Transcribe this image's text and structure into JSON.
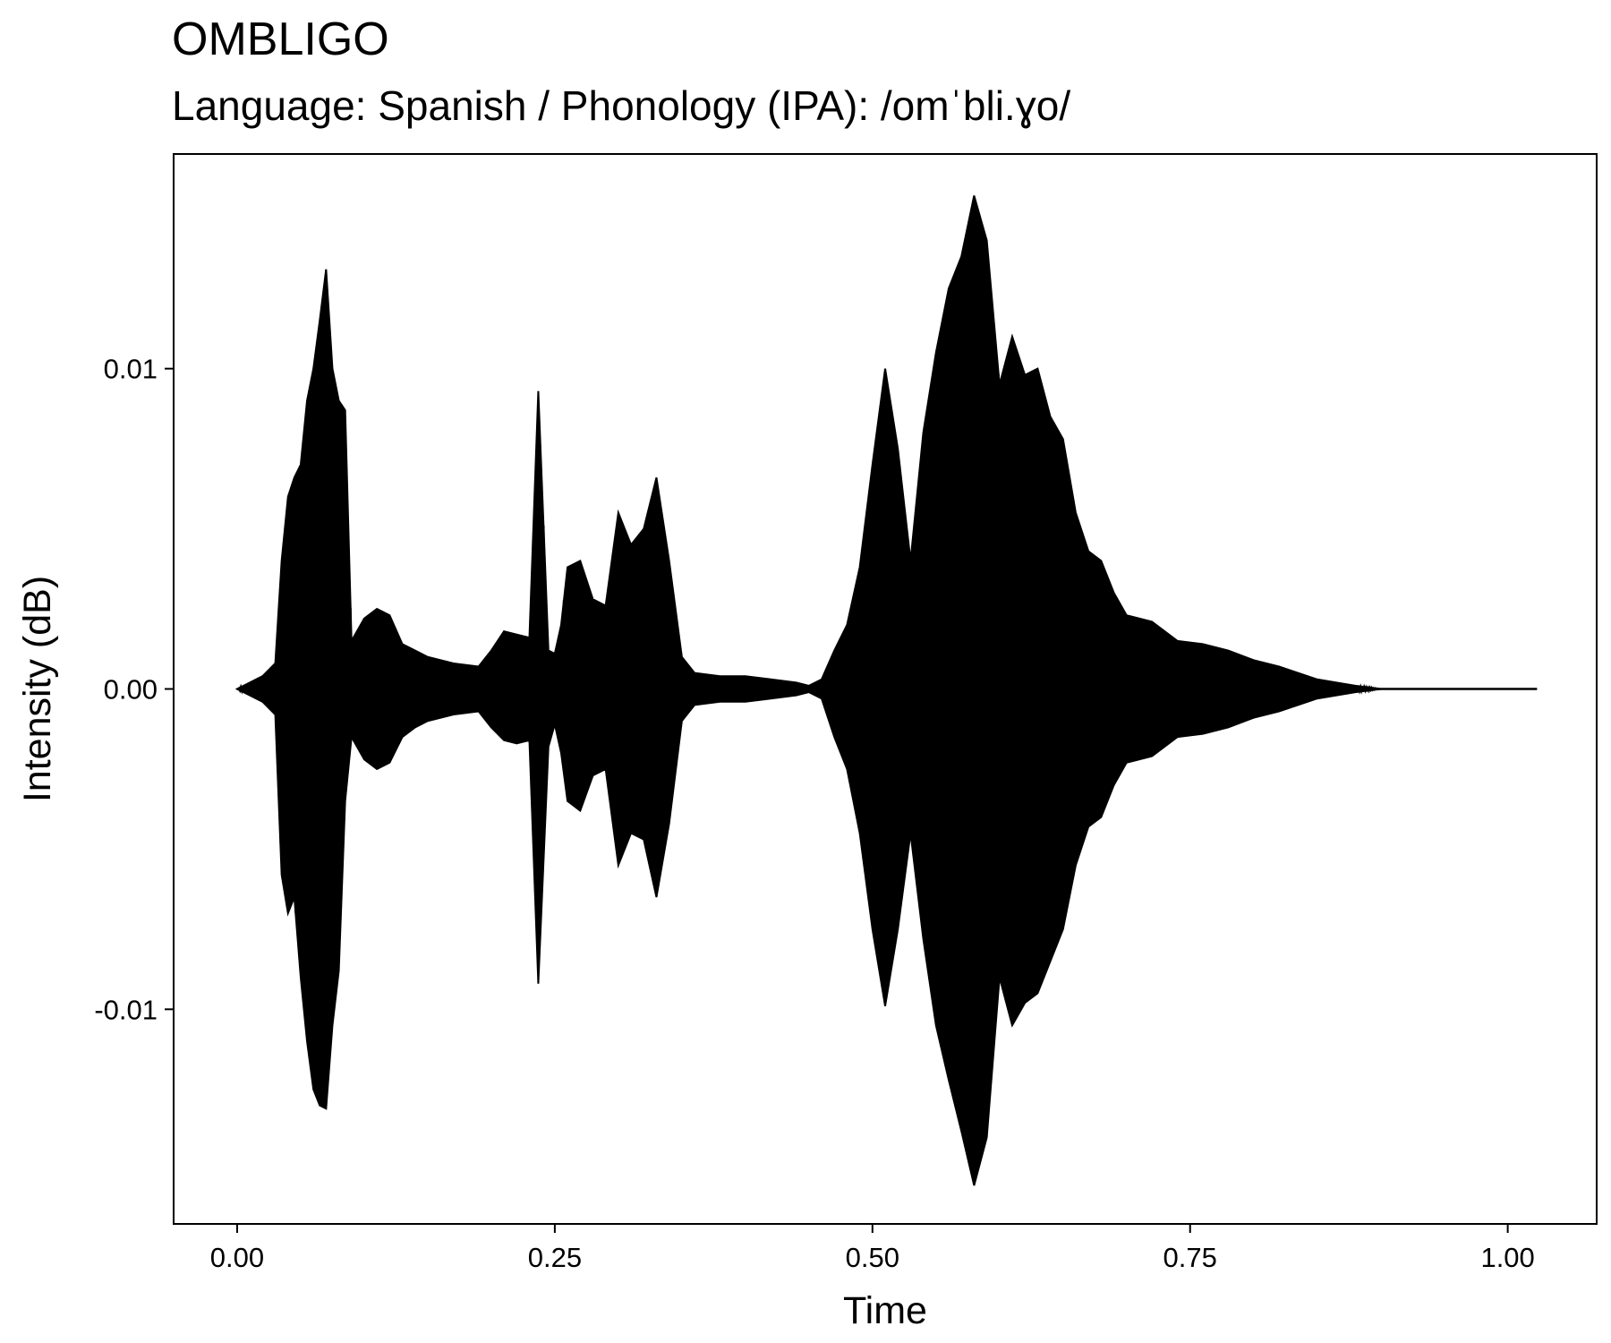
{
  "chart_data": {
    "type": "line",
    "title": "OMBLIGO",
    "subtitle": "Language: Spanish / Phonology (IPA): /omˈbli.ɣo/",
    "xlabel": "Time",
    "ylabel": "Intensity (dB)",
    "xlim": [
      -0.05,
      1.07
    ],
    "ylim": [
      -0.0167,
      0.0167
    ],
    "x_ticks": [
      0.0,
      0.25,
      0.5,
      0.75,
      1.0
    ],
    "x_tick_labels": [
      "0.00",
      "0.25",
      "0.50",
      "0.75",
      "1.00"
    ],
    "y_ticks": [
      0.01,
      0.0,
      -0.01
    ],
    "y_tick_labels": [
      "0.01",
      "0.00",
      "-0.01"
    ],
    "grid": false,
    "line_color": "#000000",
    "series": [
      {
        "x": [
          0.0,
          0.02,
          0.03,
          0.035,
          0.04,
          0.045,
          0.05,
          0.055,
          0.06,
          0.065,
          0.07,
          0.075,
          0.08,
          0.085,
          0.09,
          0.1,
          0.11,
          0.12,
          0.13,
          0.14,
          0.15,
          0.17,
          0.19,
          0.2,
          0.21,
          0.22,
          0.23,
          0.237,
          0.245,
          0.25,
          0.255,
          0.26,
          0.27,
          0.28,
          0.29,
          0.3,
          0.31,
          0.32,
          0.33,
          0.34,
          0.35,
          0.36,
          0.38,
          0.4,
          0.42,
          0.44,
          0.45,
          0.46,
          0.47,
          0.48,
          0.49,
          0.5,
          0.51,
          0.52,
          0.53,
          0.54,
          0.55,
          0.56,
          0.57,
          0.58,
          0.59,
          0.6,
          0.61,
          0.62,
          0.63,
          0.64,
          0.65,
          0.66,
          0.67,
          0.68,
          0.69,
          0.7,
          0.72,
          0.74,
          0.76,
          0.78,
          0.8,
          0.82,
          0.85,
          0.88,
          0.9,
          0.95,
          1.0,
          1.023
        ],
        "upper": [
          0.0,
          0.0004,
          0.0008,
          0.004,
          0.006,
          0.0066,
          0.007,
          0.009,
          0.01,
          0.0115,
          0.0131,
          0.01,
          0.009,
          0.0087,
          0.0015,
          0.0022,
          0.0025,
          0.0023,
          0.0014,
          0.0012,
          0.001,
          0.0008,
          0.0007,
          0.0012,
          0.0018,
          0.0017,
          0.0016,
          0.0093,
          0.0012,
          0.0011,
          0.002,
          0.0038,
          0.004,
          0.0028,
          0.0026,
          0.0055,
          0.0045,
          0.005,
          0.0066,
          0.004,
          0.001,
          0.0005,
          0.0004,
          0.0004,
          0.0003,
          0.0002,
          0.0001,
          0.0003,
          0.0012,
          0.002,
          0.0038,
          0.007,
          0.01,
          0.0075,
          0.004,
          0.008,
          0.0105,
          0.0125,
          0.0135,
          0.0154,
          0.014,
          0.0095,
          0.011,
          0.0098,
          0.01,
          0.0085,
          0.0078,
          0.0055,
          0.0043,
          0.004,
          0.003,
          0.0023,
          0.0021,
          0.0015,
          0.0014,
          0.0012,
          0.0009,
          0.0007,
          0.0003,
          0.0001,
          0.0,
          0.0,
          0.0,
          0.0
        ],
        "lower": [
          0.0,
          -0.0004,
          -0.0008,
          -0.0058,
          -0.007,
          -0.0065,
          -0.009,
          -0.011,
          -0.0125,
          -0.013,
          -0.0131,
          -0.0105,
          -0.0088,
          -0.0035,
          -0.0015,
          -0.0022,
          -0.0025,
          -0.0023,
          -0.0015,
          -0.0012,
          -0.001,
          -0.0008,
          -0.0007,
          -0.0012,
          -0.0016,
          -0.0017,
          -0.0016,
          -0.0092,
          -0.0018,
          -0.0011,
          -0.002,
          -0.0035,
          -0.0038,
          -0.0027,
          -0.0025,
          -0.0055,
          -0.0045,
          -0.0047,
          -0.0065,
          -0.0042,
          -0.001,
          -0.0005,
          -0.0004,
          -0.0004,
          -0.0003,
          -0.0002,
          -0.0001,
          -0.0003,
          -0.0015,
          -0.0025,
          -0.0045,
          -0.0075,
          -0.0099,
          -0.0075,
          -0.0045,
          -0.0078,
          -0.0105,
          -0.0122,
          -0.0138,
          -0.0155,
          -0.014,
          -0.009,
          -0.0105,
          -0.0098,
          -0.0095,
          -0.0085,
          -0.0075,
          -0.0055,
          -0.0043,
          -0.004,
          -0.003,
          -0.0023,
          -0.0021,
          -0.0015,
          -0.0014,
          -0.0012,
          -0.0009,
          -0.0007,
          -0.0003,
          -0.0001,
          0.0,
          0.0,
          0.0,
          0.0
        ]
      }
    ]
  }
}
